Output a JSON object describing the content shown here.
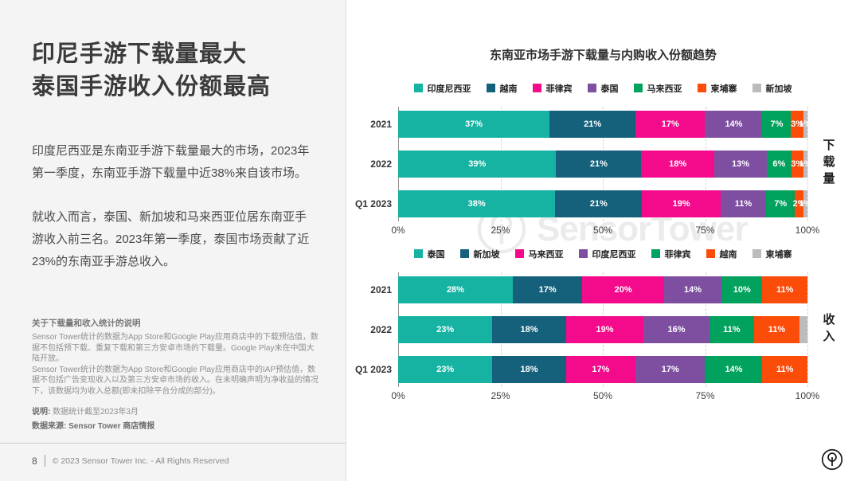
{
  "left_panel": {
    "title_line1": "印尼手游下载量最大",
    "title_line2": "泰国手游收入份额最高",
    "paragraph1": "印度尼西亚是东南亚手游下载量最大的市场，2023年第一季度，东南亚手游下载量中近38%来自该市场。",
    "paragraph2": "就收入而言，泰国、新加坡和马来西亚位居东南亚手游收入前三名。2023年第一季度，泰国市场贡献了近23%的东南亚手游总收入。",
    "notes_heading": "关于下载量和收入统计的说明",
    "notes_para1": "Sensor Tower统计的数据为App Store和Google Play应用商店中的下载预估值，数据不包括预下载、重复下载和第三方安卓市场的下载量。Google Play未在中国大陆开放。",
    "notes_para2": "Sensor Tower统计的数据为App Store和Google Play应用商店中的IAP预估值，数据不包括广告变现收入以及第三方安卓市场的收入。在未明确声明为净收益的情况下，该数据均为收入总额(即未扣除平台分成的部分)。",
    "note_label": "说明:",
    "note_value": "数据统计截至2023年3月",
    "source_text": "数据来源: Sensor Tower 商店情报"
  },
  "right_panel": {
    "chart_title": "东南亚市场手游下载量与内购收入份额趋势",
    "watermark_text": "SensorTower"
  },
  "footer": {
    "page_number": "8",
    "copyright": "© 2023 Sensor Tower Inc. - All Rights Reserved"
  },
  "chart_data": [
    {
      "type": "bar",
      "stacked": true,
      "orientation": "horizontal",
      "title": "东南亚市场手游下载量与内购收入份额趋势",
      "group_label": "下载量",
      "categories": [
        "2021",
        "2022",
        "Q1 2023"
      ],
      "series": [
        {
          "name": "印度尼西亚",
          "color": "#16b3a3",
          "values": [
            37,
            39,
            38
          ]
        },
        {
          "name": "越南",
          "color": "#15617c",
          "values": [
            21,
            21,
            21
          ]
        },
        {
          "name": "菲律宾",
          "color": "#f30b8c",
          "values": [
            17,
            18,
            19
          ]
        },
        {
          "name": "泰国",
          "color": "#7e4fa1",
          "values": [
            14,
            13,
            11
          ]
        },
        {
          "name": "马来西亚",
          "color": "#00a25d",
          "values": [
            7,
            6,
            7
          ]
        },
        {
          "name": "柬埔寨",
          "color": "#fb4c0a",
          "values": [
            3,
            3,
            2
          ]
        },
        {
          "name": "新加坡",
          "color": "#bcbcbc",
          "values": [
            1,
            1,
            1
          ]
        }
      ],
      "xlim": [
        0,
        100
      ],
      "ticks": [
        {
          "pos": 0,
          "label": "0%"
        },
        {
          "pos": 25,
          "label": "25%"
        },
        {
          "pos": 50,
          "label": "50%"
        },
        {
          "pos": 75,
          "label": "75%"
        },
        {
          "pos": 100,
          "label": "100%"
        }
      ],
      "grid": "dashed-vertical",
      "legend_position": "top"
    },
    {
      "type": "bar",
      "stacked": true,
      "orientation": "horizontal",
      "title": "东南亚市场手游下载量与内购收入份额趋势",
      "group_label": "收入",
      "categories": [
        "2021",
        "2022",
        "Q1 2023"
      ],
      "series": [
        {
          "name": "泰国",
          "color": "#16b3a3",
          "values": [
            28,
            23,
            23
          ]
        },
        {
          "name": "新加坡",
          "color": "#15617c",
          "values": [
            17,
            18,
            18
          ]
        },
        {
          "name": "马来西亚",
          "color": "#f30b8c",
          "values": [
            20,
            19,
            17
          ]
        },
        {
          "name": "印度尼西亚",
          "color": "#7e4fa1",
          "values": [
            14,
            16,
            17
          ]
        },
        {
          "name": "菲律宾",
          "color": "#00a25d",
          "values": [
            10,
            11,
            14
          ]
        },
        {
          "name": "越南",
          "color": "#fb4c0a",
          "values": [
            11,
            11,
            11
          ]
        },
        {
          "name": "柬埔寨",
          "color": "#bcbcbc",
          "values": [
            0,
            2,
            0
          ],
          "show_labels": false
        }
      ],
      "xlim": [
        0,
        100
      ],
      "ticks": [
        {
          "pos": 0,
          "label": "0%"
        },
        {
          "pos": 25,
          "label": "25%"
        },
        {
          "pos": 50,
          "label": "50%"
        },
        {
          "pos": 75,
          "label": "75%"
        },
        {
          "pos": 100,
          "label": "100%"
        }
      ],
      "grid": "dashed-vertical",
      "legend_position": "top"
    }
  ]
}
